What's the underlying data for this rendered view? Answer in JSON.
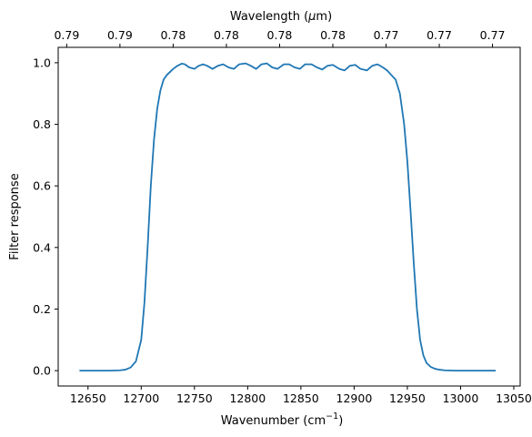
{
  "chart_data": {
    "type": "line",
    "title": "",
    "xlabel": "Wavenumber (cm",
    "xlabel_sup": "−1",
    "xlabel_tail": ")",
    "ylabel": "Filter response",
    "top_axis_label": "Wavelength (",
    "top_axis_label_math": "μ",
    "top_axis_label_tail": "m)",
    "xlim": [
      12622,
      13056
    ],
    "ylim": [
      -0.05,
      1.05
    ],
    "x_ticks": [
      12650,
      12700,
      12750,
      12800,
      12850,
      12900,
      12950,
      13000,
      13050
    ],
    "x_tick_labels": [
      "12650",
      "12700",
      "12750",
      "12800",
      "12850",
      "12900",
      "12950",
      "13000",
      "13050"
    ],
    "y_ticks": [
      0.0,
      0.2,
      0.4,
      0.6,
      0.8,
      1.0
    ],
    "y_tick_labels": [
      "0.0",
      "0.2",
      "0.4",
      "0.6",
      "0.8",
      "1.0"
    ],
    "top_ticks_wavenumber": [
      12630,
      12680,
      12730,
      12780,
      12830,
      12880,
      12930,
      12980,
      13030
    ],
    "top_tick_labels": [
      "0.79",
      "0.79",
      "0.78",
      "0.78",
      "0.78",
      "0.78",
      "0.77",
      "0.77",
      "0.77"
    ],
    "grid": false,
    "legend": "none",
    "series": [
      {
        "color": "#1f77b4",
        "x": [
          12642,
          12660,
          12670,
          12680,
          12685,
          12690,
          12695,
          12700,
          12703,
          12706,
          12709,
          12712,
          12715,
          12718,
          12721,
          12724,
          12727,
          12730,
          12734,
          12738,
          12741,
          12745,
          12750,
          12754,
          12758,
          12762,
          12767,
          12772,
          12777,
          12782,
          12787,
          12792,
          12798,
          12803,
          12808,
          12813,
          12818,
          12823,
          12828,
          12834,
          12839,
          12844,
          12849,
          12854,
          12860,
          12865,
          12870,
          12875,
          12880,
          12886,
          12891,
          12896,
          12901,
          12906,
          12912,
          12917,
          12922,
          12927,
          12931,
          12935,
          12939,
          12943,
          12947,
          12950,
          12953,
          12956,
          12959,
          12962,
          12965,
          12968,
          12972,
          12976,
          12980,
          12985,
          12995,
          13010,
          13033
        ],
        "y": [
          0.0,
          0.0,
          0.0,
          0.001,
          0.003,
          0.01,
          0.03,
          0.1,
          0.22,
          0.4,
          0.6,
          0.75,
          0.85,
          0.91,
          0.945,
          0.96,
          0.97,
          0.98,
          0.99,
          0.997,
          0.995,
          0.985,
          0.98,
          0.99,
          0.995,
          0.99,
          0.98,
          0.99,
          0.995,
          0.985,
          0.98,
          0.995,
          0.998,
          0.99,
          0.98,
          0.995,
          0.998,
          0.985,
          0.98,
          0.995,
          0.995,
          0.985,
          0.98,
          0.995,
          0.995,
          0.985,
          0.978,
          0.99,
          0.993,
          0.98,
          0.975,
          0.99,
          0.993,
          0.98,
          0.975,
          0.99,
          0.995,
          0.985,
          0.975,
          0.96,
          0.945,
          0.9,
          0.8,
          0.68,
          0.52,
          0.35,
          0.2,
          0.1,
          0.05,
          0.025,
          0.012,
          0.006,
          0.003,
          0.001,
          0.0,
          0.0,
          0.0
        ]
      }
    ]
  }
}
